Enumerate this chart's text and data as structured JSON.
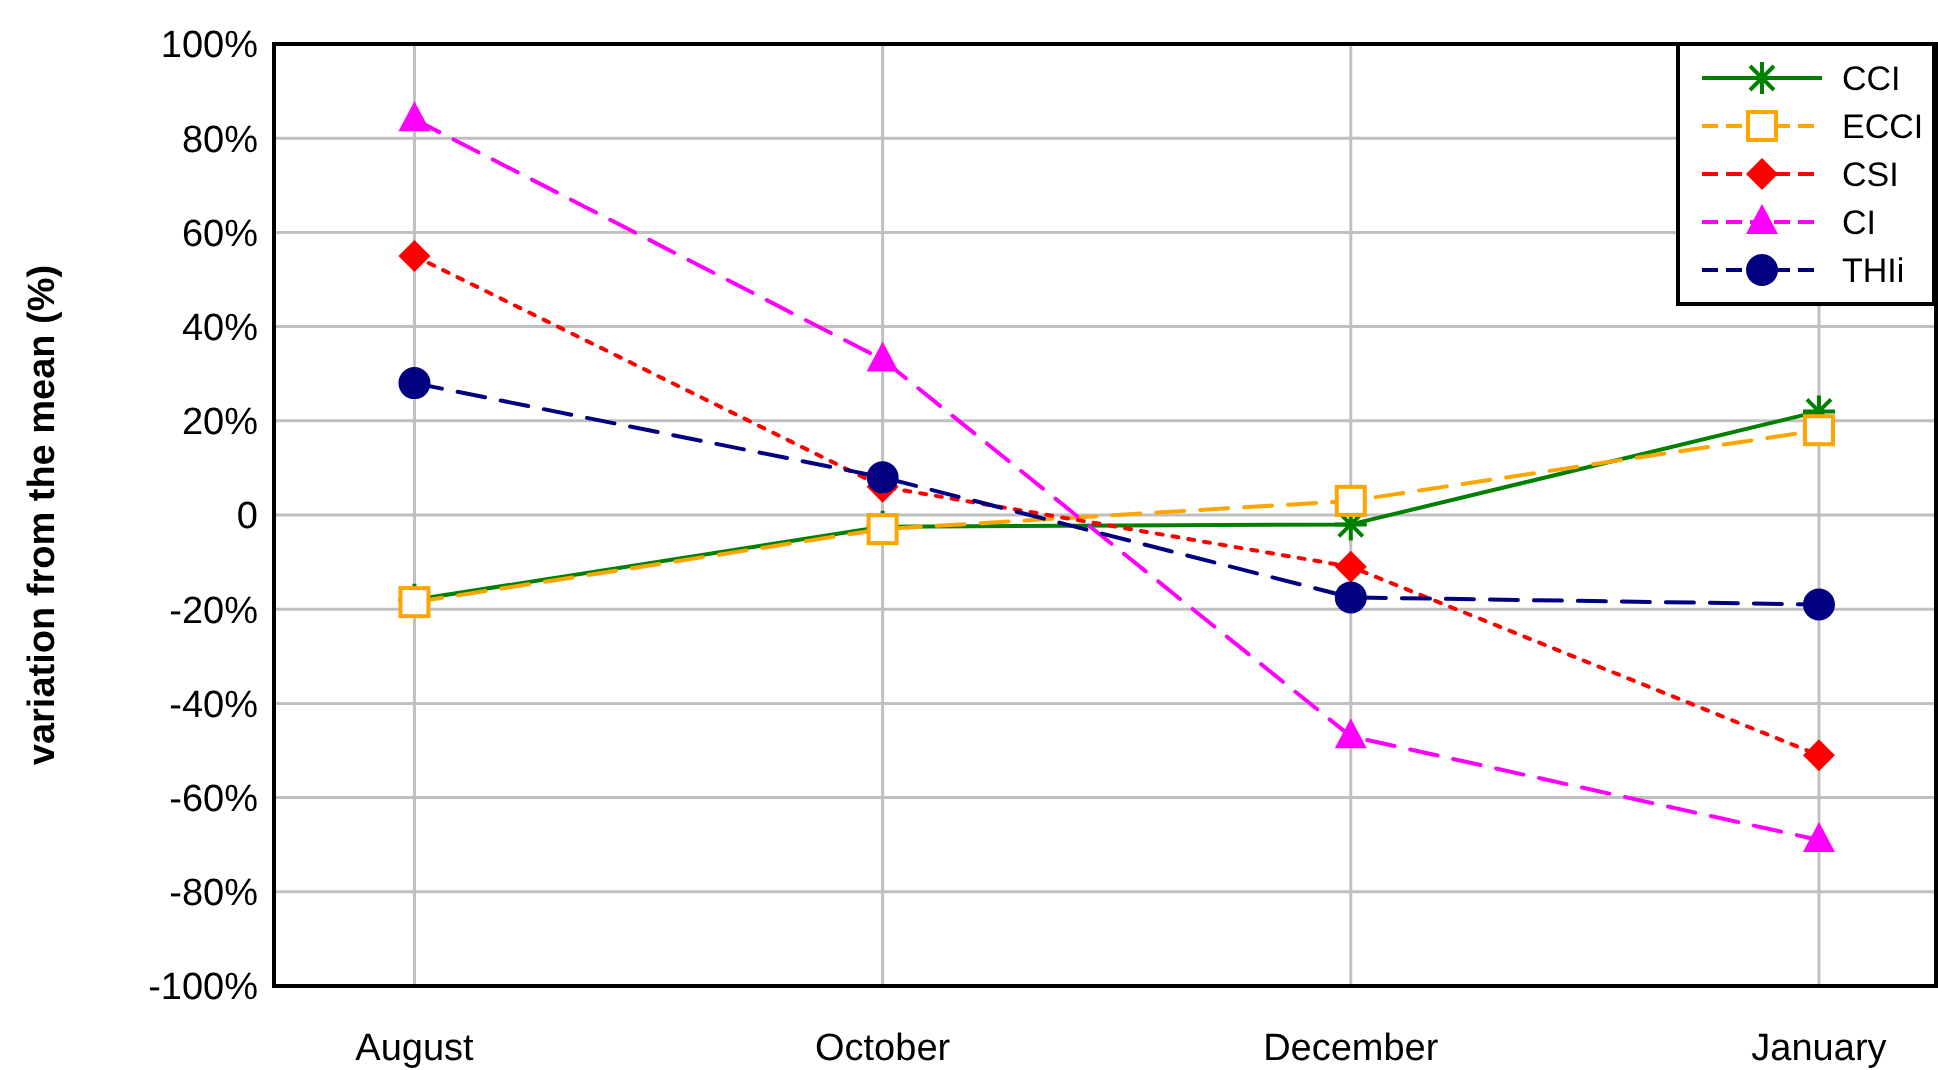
{
  "chart_data": {
    "type": "line",
    "ylabel": "variation from the mean (%)",
    "categories": [
      "August",
      "October",
      "December",
      "January"
    ],
    "ylim": [
      -100,
      100
    ],
    "yticks": [
      {
        "value": -100,
        "label": "-100%"
      },
      {
        "value": -80,
        "label": "-80%"
      },
      {
        "value": -60,
        "label": "-60%"
      },
      {
        "value": -40,
        "label": "-40%"
      },
      {
        "value": -20,
        "label": "-20%"
      },
      {
        "value": 0,
        "label": "0"
      },
      {
        "value": 20,
        "label": "20%"
      },
      {
        "value": 40,
        "label": "40%"
      },
      {
        "value": 60,
        "label": "60%"
      },
      {
        "value": 80,
        "label": "80%"
      },
      {
        "value": 100,
        "label": "100%"
      }
    ],
    "grid": true,
    "legend": "top right",
    "series": [
      {
        "name": "CCI",
        "color": "#008000",
        "marker": "cross",
        "line_style": "solid",
        "values": [
          -18,
          -2.5,
          -2,
          22
        ]
      },
      {
        "name": "ECCI",
        "color": "#ffa500",
        "marker": "square",
        "line_style": "dashed",
        "values": [
          -18.5,
          -3,
          3,
          18
        ]
      },
      {
        "name": "CSI",
        "color": "#ff0000",
        "marker": "diamond",
        "line_style": "dotted",
        "values": [
          55,
          6,
          -11,
          -51
        ]
      },
      {
        "name": "CI",
        "color": "#ff00ff",
        "marker": "triangle",
        "line_style": "dashed",
        "values": [
          84,
          33,
          -47,
          -69
        ]
      },
      {
        "name": "THIi",
        "color": "#000080",
        "marker": "circle",
        "line_style": "dashed",
        "values": [
          28,
          8,
          -17.5,
          -19
        ]
      }
    ]
  }
}
